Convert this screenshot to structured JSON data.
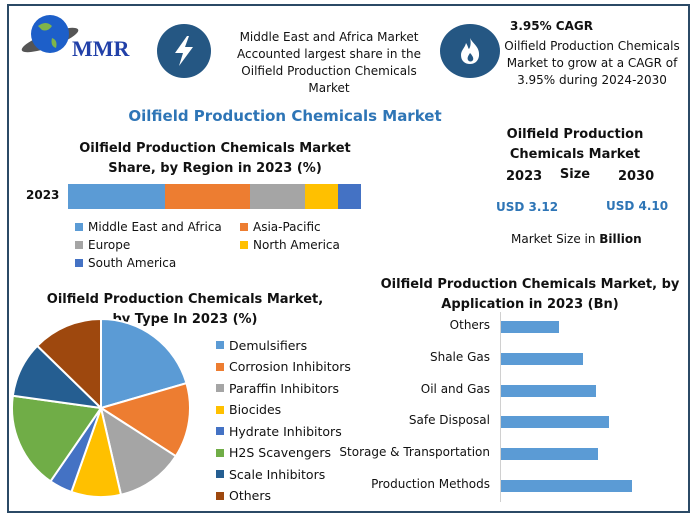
{
  "logo": {
    "text": "MMR"
  },
  "header": {
    "highlight_text": "Middle East and Africa Market Accounted largest share in the Oilfield Production Chemicals Market",
    "cagr_title": "3.95% CAGR",
    "cagr_text": "Oilfield Production Chemicals Market to grow at a CAGR of 3.95% during 2024-2030",
    "icons": [
      "lightning-icon",
      "flame-icon"
    ]
  },
  "main_title": "Oilfield Production Chemicals Market",
  "market_size": {
    "title": "Oilfield Production Chemicals Market Size",
    "year1": "2023",
    "year2": "2030",
    "value1": "USD 3.12",
    "value2": "USD 4.10",
    "note_prefix": "Market Size in ",
    "note_bold": "Billion"
  },
  "colors": {
    "frame": "#2b4a66",
    "title": "#2E75B6",
    "icon_bg": "#255783"
  },
  "chart_data": [
    {
      "type": "bar",
      "stacked": true,
      "orientation": "horizontal",
      "title": "Oilfield Production Chemicals Market Share, by Region in 2023 (%)",
      "categories": [
        "2023"
      ],
      "series": [
        {
          "name": "Middle East and Africa",
          "values": [
            33
          ],
          "color": "#5B9BD5"
        },
        {
          "name": "Asia-Pacific",
          "values": [
            29
          ],
          "color": "#ED7D31"
        },
        {
          "name": "Europe",
          "values": [
            19
          ],
          "color": "#A5A5A5"
        },
        {
          "name": "North America",
          "values": [
            11
          ],
          "color": "#FFC000"
        },
        {
          "name": "South America",
          "values": [
            8
          ],
          "color": "#4472C4"
        }
      ],
      "legend": "bottom"
    },
    {
      "type": "pie",
      "title": "Oilfield Production Chemicals Market, by Type In 2023 (%)",
      "labels": [
        "Demulsifiers",
        "Corrosion Inhibitors",
        "Paraffin Inhibitors",
        "Biocides",
        "Hydrate Inhibitors",
        "H2S Scavengers",
        "Scale Inhibitors",
        "Others"
      ],
      "values": [
        20.5,
        13.6,
        12.3,
        9.0,
        4.2,
        17.6,
        10.1,
        12.7
      ],
      "colors": [
        "#5B9BD5",
        "#ED7D31",
        "#A5A5A5",
        "#FFC000",
        "#4472C4",
        "#70AD47",
        "#255E91",
        "#9E480E"
      ],
      "legend": "right"
    },
    {
      "type": "bar",
      "orientation": "horizontal",
      "title": "Oilfield Production Chemicals Market, by Application in 2023 (Bn)",
      "categories": [
        "Others",
        "Shale Gas",
        "Oil and Gas",
        "Safe Disposal",
        "Storage & Transportation",
        "Production Methods"
      ],
      "values": [
        0.32,
        0.45,
        0.52,
        0.59,
        0.53,
        0.72
      ],
      "color": "#5B9BD5",
      "xlim": [
        0,
        0.85
      ]
    }
  ]
}
